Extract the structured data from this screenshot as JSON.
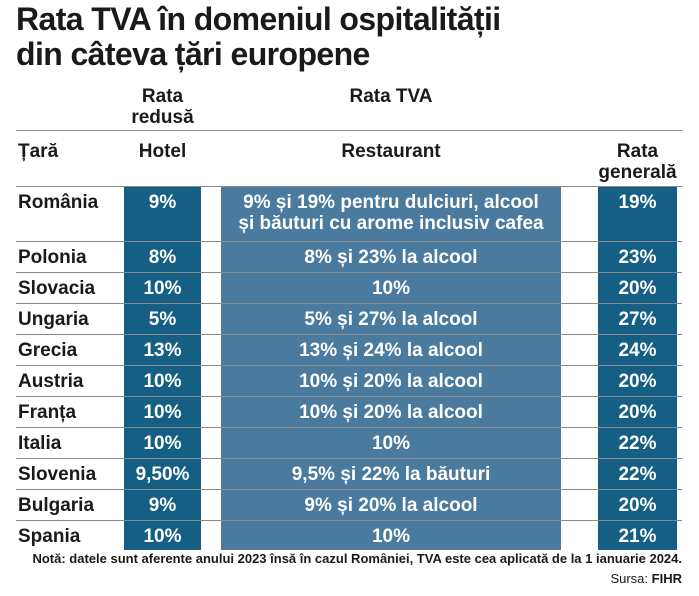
{
  "title_line1": "Rata TVA în domeniul ospitalității",
  "title_line2": "din câteva țări europene",
  "headers": {
    "reduced_rate_1": "Rata",
    "reduced_rate_2": "redusă",
    "vat_rate": "Rata TVA",
    "country": "Țară",
    "hotel": "Hotel",
    "restaurant": "Restaurant",
    "general_1": "Rata",
    "general_2": "generală"
  },
  "rows": [
    {
      "country": "România",
      "hotel": "9%",
      "restaurant_1": "9% și 19% pentru dulciuri, alcool",
      "restaurant_2": "și băuturi cu arome inclusiv cafea",
      "general": "19%"
    },
    {
      "country": "Polonia",
      "hotel": "8%",
      "restaurant": "8% și 23% la alcool",
      "general": "23%"
    },
    {
      "country": "Slovacia",
      "hotel": "10%",
      "restaurant": "10%",
      "general": "20%"
    },
    {
      "country": "Ungaria",
      "hotel": "5%",
      "restaurant": "5% și 27% la alcool",
      "general": "27%"
    },
    {
      "country": "Grecia",
      "hotel": "13%",
      "restaurant": "13% și 24% la alcool",
      "general": "24%"
    },
    {
      "country": "Austria",
      "hotel": "10%",
      "restaurant": "10% și 20% la alcool",
      "general": "20%"
    },
    {
      "country": "Franța",
      "hotel": "10%",
      "restaurant": "10% și 20% la alcool",
      "general": "20%"
    },
    {
      "country": "Italia",
      "hotel": "10%",
      "restaurant": "10%",
      "general": "22%"
    },
    {
      "country": "Slovenia",
      "hotel": "9,50%",
      "restaurant": "9,5% și 22% la băuturi",
      "general": "22%"
    },
    {
      "country": "Bulgaria",
      "hotel": "9%",
      "restaurant": "9% și 20% la alcool",
      "general": "20%"
    },
    {
      "country": "Spania",
      "hotel": "10%",
      "restaurant": "10%",
      "general": "21%"
    }
  ],
  "note": "Notă: datele sunt aferente anului 2023 însă în cazul României, TVA este cea aplicată de la 1 ianuarie 2024.",
  "source_label": "Sursa:",
  "source_value": "FIHR",
  "colors": {
    "dark_blue": "#155f84",
    "mid_blue": "#4a7a9d",
    "text": "#1a1a1a"
  }
}
